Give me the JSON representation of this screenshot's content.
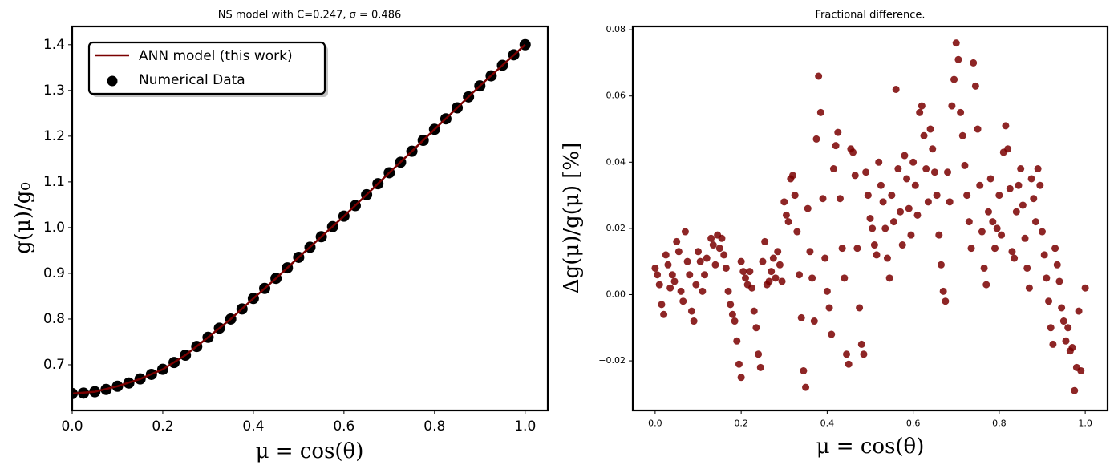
{
  "chart_data": [
    {
      "type": "line",
      "title": "NS model with C=0.247, σ = 0.486",
      "xlabel": "μ = cos(θ)",
      "ylabel": "g(μ)/g₀",
      "xlim": [
        0,
        1.05
      ],
      "ylim": [
        0.6,
        1.44
      ],
      "xticks": [
        {
          "value": 0,
          "label": "0.0"
        },
        0.2,
        0.4,
        0.6,
        0.8,
        {
          "value": 1,
          "label": "1.0"
        }
      ],
      "yticks": [
        0.7,
        0.8,
        0.9,
        {
          "value": 1,
          "label": "1.0"
        },
        1.1,
        1.2,
        1.3,
        1.4
      ],
      "legend": "upper left",
      "series": [
        {
          "name": "ANN model (this work)",
          "kind": "line",
          "color": "#7a0000",
          "x": [
            0,
            0.05,
            0.1,
            0.15,
            0.2,
            0.25,
            0.3,
            0.35,
            0.4,
            0.45,
            0.5,
            0.55,
            0.6,
            0.65,
            0.7,
            0.75,
            0.8,
            0.85,
            0.9,
            0.95,
            1.0
          ],
          "values": [
            0.637,
            0.641,
            0.653,
            0.669,
            0.69,
            0.721,
            0.76,
            0.8,
            0.845,
            0.889,
            0.935,
            0.98,
            1.025,
            1.072,
            1.12,
            1.167,
            1.215,
            1.262,
            1.31,
            1.355,
            1.4
          ]
        },
        {
          "name": "Numerical Data",
          "kind": "scatter",
          "color": "#000000",
          "x": [
            0,
            0.025,
            0.05,
            0.075,
            0.1,
            0.125,
            0.15,
            0.175,
            0.2,
            0.225,
            0.25,
            0.275,
            0.3,
            0.325,
            0.35,
            0.375,
            0.4,
            0.425,
            0.45,
            0.475,
            0.5,
            0.525,
            0.55,
            0.575,
            0.6,
            0.625,
            0.65,
            0.675,
            0.7,
            0.725,
            0.75,
            0.775,
            0.8,
            0.825,
            0.85,
            0.875,
            0.9,
            0.925,
            0.95,
            0.975,
            1.0
          ],
          "values": [
            0.637,
            0.638,
            0.641,
            0.646,
            0.653,
            0.66,
            0.669,
            0.679,
            0.69,
            0.705,
            0.721,
            0.74,
            0.76,
            0.78,
            0.8,
            0.822,
            0.845,
            0.867,
            0.889,
            0.912,
            0.935,
            0.957,
            0.98,
            1.002,
            1.025,
            1.048,
            1.072,
            1.096,
            1.12,
            1.143,
            1.167,
            1.191,
            1.215,
            1.238,
            1.262,
            1.286,
            1.31,
            1.332,
            1.355,
            1.378,
            1.4
          ]
        }
      ]
    },
    {
      "type": "scatter",
      "title": "Fractional difference.",
      "xlabel": "μ = cos(θ)",
      "ylabel": "Δg(μ)/g(μ)  [%]",
      "xlim": [
        -0.052,
        1.052
      ],
      "ylim": [
        -0.035,
        0.081
      ],
      "xticks": [
        {
          "value": 0,
          "label": "0.0"
        },
        0.2,
        0.4,
        0.6,
        0.8,
        {
          "value": 1,
          "label": "1.0"
        }
      ],
      "yticks": [
        {
          "value": -0.02,
          "label": "−0.02"
        },
        {
          "value": 0,
          "label": "0.00"
        },
        0.02,
        0.04,
        0.06,
        0.08
      ],
      "color": "#7a0000",
      "x": [
        0,
        0.005,
        0.01,
        0.015,
        0.02,
        0.025,
        0.03,
        0.035,
        0.04,
        0.045,
        0.05,
        0.055,
        0.06,
        0.065,
        0.07,
        0.075,
        0.08,
        0.085,
        0.09,
        0.095,
        0.1,
        0.105,
        0.11,
        0.115,
        0.12,
        0.13,
        0.135,
        0.14,
        0.145,
        0.15,
        0.155,
        0.16,
        0.165,
        0.17,
        0.175,
        0.18,
        0.185,
        0.19,
        0.195,
        0.2,
        0.2,
        0.205,
        0.21,
        0.215,
        0.22,
        0.225,
        0.23,
        0.235,
        0.24,
        0.245,
        0.25,
        0.255,
        0.26,
        0.265,
        0.27,
        0.275,
        0.28,
        0.285,
        0.29,
        0.295,
        0.3,
        0.305,
        0.31,
        0.315,
        0.32,
        0.325,
        0.33,
        0.335,
        0.34,
        0.345,
        0.35,
        0.355,
        0.36,
        0.365,
        0.37,
        0.375,
        0.38,
        0.385,
        0.39,
        0.395,
        0.4,
        0.405,
        0.41,
        0.415,
        0.42,
        0.425,
        0.43,
        0.435,
        0.44,
        0.445,
        0.45,
        0.455,
        0.46,
        0.465,
        0.47,
        0.475,
        0.48,
        0.485,
        0.49,
        0.495,
        0.5,
        0.505,
        0.51,
        0.515,
        0.52,
        0.525,
        0.53,
        0.535,
        0.54,
        0.545,
        0.55,
        0.555,
        0.56,
        0.565,
        0.57,
        0.575,
        0.58,
        0.585,
        0.59,
        0.595,
        0.6,
        0.605,
        0.61,
        0.615,
        0.62,
        0.625,
        0.63,
        0.635,
        0.64,
        0.645,
        0.65,
        0.655,
        0.66,
        0.665,
        0.67,
        0.675,
        0.68,
        0.685,
        0.69,
        0.695,
        0.7,
        0.705,
        0.71,
        0.715,
        0.72,
        0.725,
        0.73,
        0.735,
        0.74,
        0.745,
        0.75,
        0.755,
        0.76,
        0.765,
        0.77,
        0.775,
        0.78,
        0.785,
        0.79,
        0.795,
        0.8,
        0.805,
        0.81,
        0.815,
        0.82,
        0.825,
        0.83,
        0.835,
        0.84,
        0.845,
        0.85,
        0.855,
        0.86,
        0.865,
        0.87,
        0.875,
        0.88,
        0.885,
        0.89,
        0.895,
        0.9,
        0.905,
        0.91,
        0.915,
        0.92,
        0.925,
        0.93,
        0.935,
        0.94,
        0.945,
        0.95,
        0.955,
        0.96,
        0.965,
        0.97,
        0.975,
        0.98,
        0.985,
        0.99,
        1.0
      ],
      "values": [
        0.008,
        0.006,
        0.003,
        -0.003,
        -0.006,
        0.012,
        0.009,
        0.002,
        0.006,
        0.004,
        0.016,
        0.013,
        0.001,
        -0.002,
        0.019,
        0.01,
        0.006,
        -0.005,
        -0.008,
        0.003,
        0.013,
        0.01,
        0.001,
        0.006,
        0.011,
        0.017,
        0.015,
        0.009,
        0.018,
        0.014,
        0.017,
        0.012,
        0.008,
        0.001,
        -0.003,
        -0.006,
        -0.008,
        -0.014,
        -0.021,
        -0.025,
        0.01,
        0.007,
        0.005,
        0.003,
        0.007,
        0.002,
        -0.005,
        -0.01,
        -0.018,
        -0.022,
        0.01,
        0.016,
        0.003,
        0.004,
        0.007,
        0.011,
        0.005,
        0.013,
        0.009,
        0.004,
        0.028,
        0.024,
        0.022,
        0.035,
        0.036,
        0.03,
        0.019,
        0.006,
        -0.007,
        -0.023,
        -0.028,
        0.026,
        0.013,
        0.005,
        -0.008,
        0.047,
        0.066,
        0.055,
        0.029,
        0.011,
        0.001,
        -0.004,
        -0.012,
        0.038,
        0.045,
        0.049,
        0.029,
        0.014,
        0.005,
        -0.018,
        -0.021,
        0.044,
        0.043,
        0.036,
        0.014,
        -0.004,
        -0.015,
        -0.018,
        0.037,
        0.03,
        0.023,
        0.02,
        0.015,
        0.012,
        0.04,
        0.033,
        0.028,
        0.02,
        0.011,
        0.005,
        0.03,
        0.022,
        0.062,
        0.038,
        0.025,
        0.015,
        0.042,
        0.035,
        0.026,
        0.018,
        0.04,
        0.033,
        0.024,
        0.055,
        0.057,
        0.048,
        0.038,
        0.028,
        0.05,
        0.044,
        0.037,
        0.03,
        0.018,
        0.009,
        0.001,
        -0.002,
        0.037,
        0.028,
        0.057,
        0.065,
        0.076,
        0.071,
        0.055,
        0.048,
        0.039,
        0.03,
        0.022,
        0.014,
        0.07,
        0.063,
        0.05,
        0.033,
        0.019,
        0.008,
        0.003,
        0.025,
        0.035,
        0.022,
        0.014,
        0.02,
        0.03,
        0.018,
        0.043,
        0.051,
        0.044,
        0.032,
        0.013,
        0.011,
        0.025,
        0.033,
        0.038,
        0.027,
        0.017,
        0.008,
        0.002,
        0.035,
        0.029,
        0.022,
        0.038,
        0.033,
        0.019,
        0.012,
        0.005,
        -0.002,
        -0.01,
        -0.015,
        0.014,
        0.009,
        0.004,
        -0.004,
        -0.008,
        -0.014,
        -0.01,
        -0.017,
        -0.016,
        -0.029,
        -0.022,
        -0.005,
        -0.023,
        0.002
      ]
    }
  ]
}
